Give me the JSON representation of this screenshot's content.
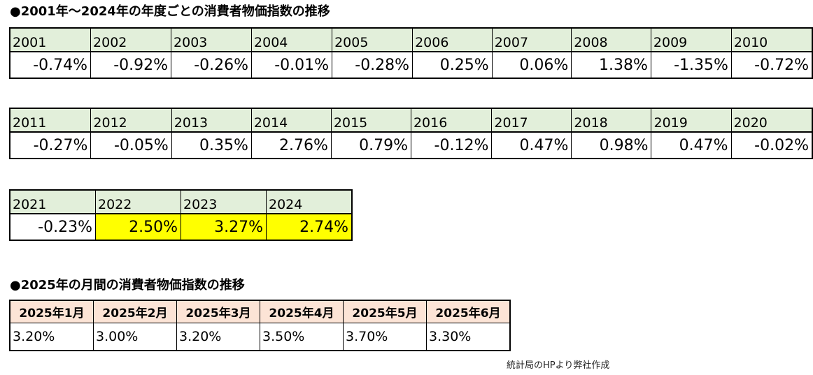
{
  "section1": {
    "title": "●2001年～2024年の年度ごとの消費者物価指数の推移",
    "rows": [
      {
        "years": [
          "2001",
          "2002",
          "2003",
          "2004",
          "2005",
          "2006",
          "2007",
          "2008",
          "2009",
          "2010"
        ],
        "values": [
          "-0.74%",
          "-0.92%",
          "-0.26%",
          "-0.01%",
          "-0.28%",
          "0.25%",
          "0.06%",
          "1.38%",
          "-1.35%",
          "-0.72%"
        ]
      },
      {
        "years": [
          "2011",
          "2012",
          "2013",
          "2014",
          "2015",
          "2016",
          "2017",
          "2018",
          "2019",
          "2020"
        ],
        "values": [
          "-0.27%",
          "-0.05%",
          "0.35%",
          "2.76%",
          "0.79%",
          "-0.12%",
          "0.47%",
          "0.98%",
          "0.47%",
          "-0.02%"
        ]
      },
      {
        "years": [
          "2021",
          "2022",
          "2023",
          "2024"
        ],
        "values": [
          "-0.23%",
          "2.50%",
          "3.27%",
          "2.74%"
        ],
        "highlight_color": "#ffff00"
      }
    ],
    "header_color": "#e2efda"
  },
  "section2": {
    "title": "●2025年の月間の消費者物価指数の推移",
    "months": [
      "2025年1月",
      "2025年2月",
      "2025年3月",
      "2025年4月",
      "2025年5月",
      "2025年6月"
    ],
    "values": [
      "3.20%",
      "3.00%",
      "3.20%",
      "3.50%",
      "3.70%",
      "3.30%"
    ],
    "header_color": "#fce4d6"
  },
  "source_note": "統計局のHPより弊社作成"
}
